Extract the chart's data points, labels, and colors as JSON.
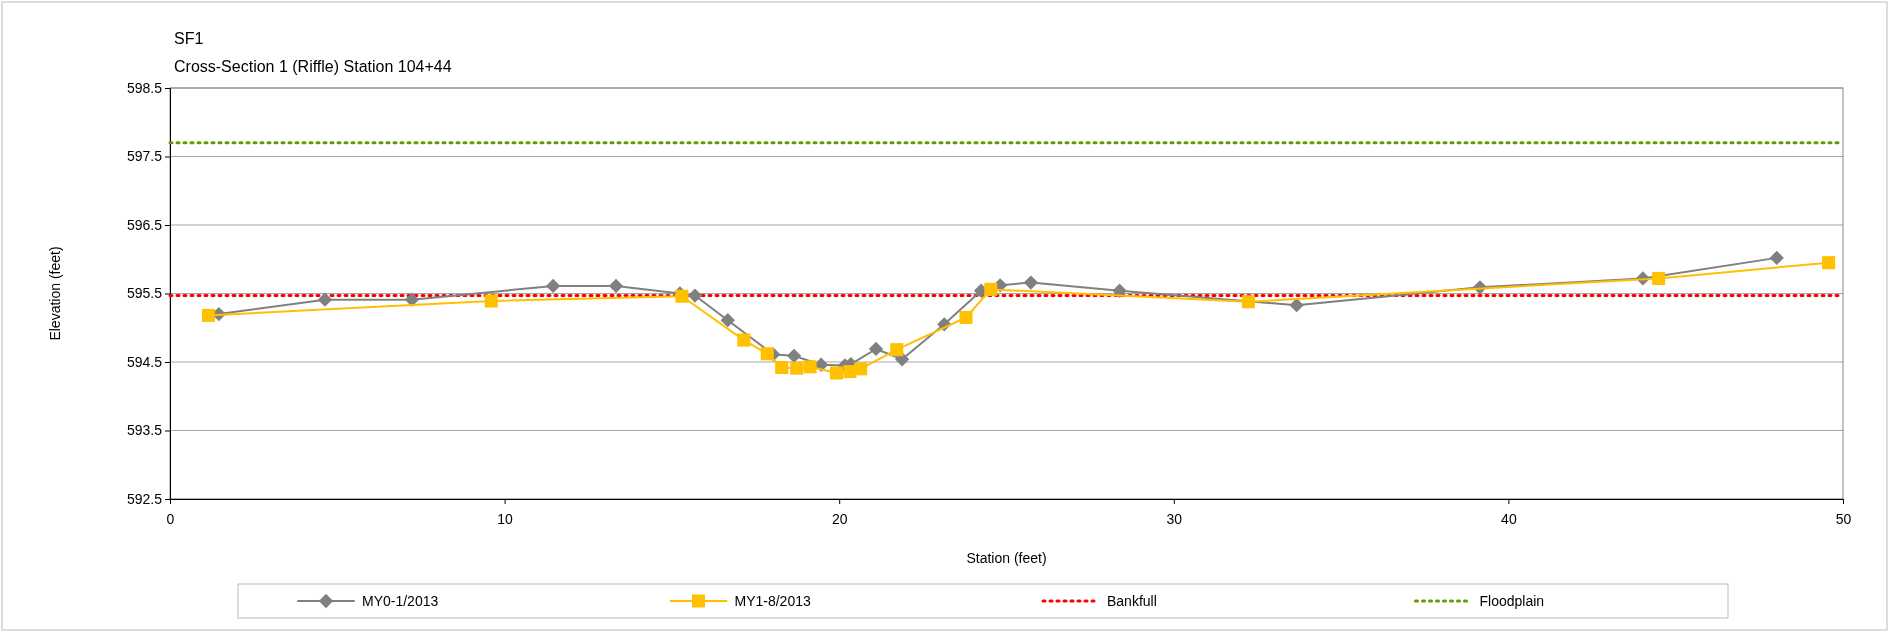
{
  "chart_data": {
    "type": "line",
    "title": "SF1",
    "subtitle": "Cross-Section 1 (Riffle) Station 104+44",
    "xlabel": "Station (feet)",
    "ylabel": "Elevation (feet)",
    "xlim": [
      0,
      50
    ],
    "xticks": [
      0,
      10,
      20,
      30,
      40,
      50
    ],
    "ylim": [
      592.5,
      598.5
    ],
    "yticks": [
      592.5,
      593.5,
      594.5,
      595.5,
      596.5,
      597.5,
      598.5
    ],
    "grid": "y",
    "legend": "bottom",
    "line_style": "solid",
    "series": [
      {
        "name": "MY0-1/2013",
        "color": "#808080",
        "marker": "diamond",
        "x": [
          1.46,
          4.63,
          7.23,
          11.45,
          13.33,
          15.24,
          15.69,
          16.67,
          18.03,
          18.65,
          19.46,
          20.17,
          20.35,
          21.1,
          21.88,
          23.14,
          24.24,
          24.81,
          25.73,
          28.38,
          33.67,
          39.15,
          44.02,
          48.02
        ],
        "values": [
          595.2,
          595.41,
          595.41,
          595.61,
          595.61,
          595.5,
          595.47,
          595.11,
          594.61,
          594.59,
          594.46,
          594.45,
          594.47,
          594.69,
          594.54,
          595.05,
          595.54,
          595.62,
          595.66,
          595.54,
          595.33,
          595.59,
          595.72,
          596.02
        ]
      },
      {
        "name": "MY1-8/2013",
        "color": "#ffc000",
        "marker": "square",
        "x": [
          1.15,
          9.6,
          15.3,
          17.15,
          17.85,
          18.28,
          18.73,
          19.13,
          19.92,
          20.32,
          20.64,
          21.72,
          23.79,
          24.53,
          32.23,
          44.49,
          49.57
        ],
        "values": [
          595.18,
          595.39,
          595.46,
          594.82,
          594.62,
          594.42,
          594.41,
          594.43,
          594.34,
          594.36,
          594.4,
          594.68,
          595.15,
          595.56,
          595.38,
          595.72,
          595.95
        ]
      }
    ],
    "ref_lines": [
      {
        "axis": "y",
        "value": 595.47,
        "label": "Bankfull",
        "color": "#ff0000",
        "line_style": "dotted"
      },
      {
        "axis": "y",
        "value": 597.7,
        "label": "Floodplain",
        "color": "#669900",
        "line_style": "dotted"
      }
    ]
  }
}
